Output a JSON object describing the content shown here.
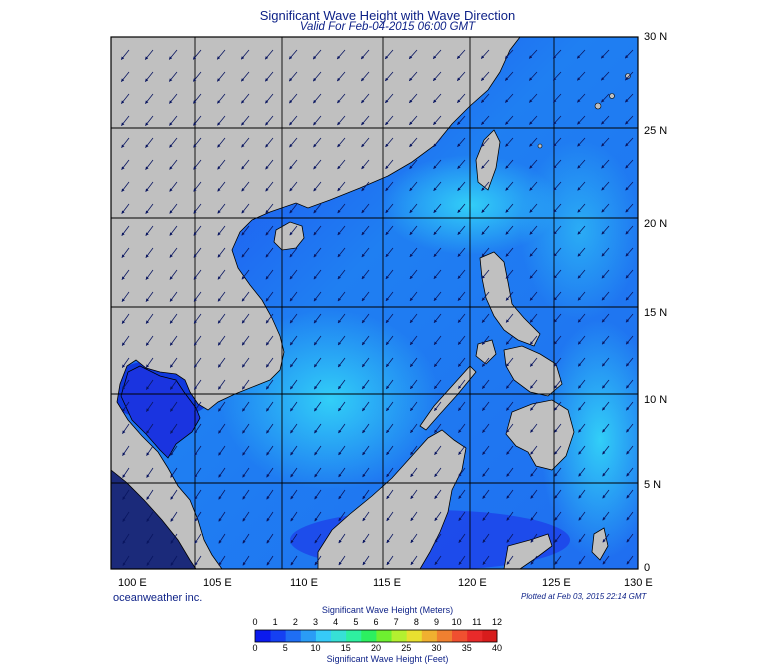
{
  "title": "Significant Wave Height with Wave Direction",
  "subtitle": "Valid For Feb-04-2015 06:00 GMT",
  "brand": "oceanweather inc.",
  "plotted": "Plotted at Feb 03, 2015 22:14 GMT",
  "lat_labels": [
    "30 N",
    "25 N",
    "20 N",
    "15 N",
    "10 N",
    "5 N",
    "0"
  ],
  "lon_labels": [
    "100 E",
    "105 E",
    "110 E",
    "115 E",
    "120 E",
    "125 E",
    "130 E"
  ],
  "colorbar": {
    "title_meters": "Significant Wave Height (Meters)",
    "title_feet": "Significant Wave Height (Feet)",
    "meters_ticks": [
      "0",
      "1",
      "2",
      "3",
      "4",
      "5",
      "6",
      "7",
      "8",
      "9",
      "10",
      "11",
      "12"
    ],
    "feet_ticks": [
      "0",
      "5",
      "10",
      "15",
      "20",
      "25",
      "30",
      "35",
      "40"
    ]
  },
  "colors": {
    "land": "#c0c0c0",
    "coast": "#000000",
    "ocean_low": "#1e3cf0",
    "ocean_mid": "#1f86f2",
    "ocean_high": "#2fcaf7",
    "text": "#0b1f86"
  },
  "wave_direction": "from northeast"
}
